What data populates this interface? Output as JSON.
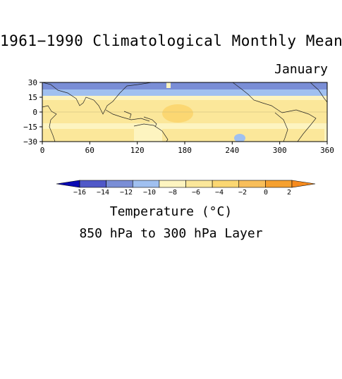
{
  "title": "1961−1990 Climatological Monthly Mean",
  "month": "January",
  "map": {
    "lon_ticks": [
      "0",
      "60",
      "120",
      "180",
      "240",
      "300",
      "360"
    ],
    "lat_ticks": [
      "30",
      "15",
      "0",
      "−15",
      "−30"
    ],
    "lon_range": [
      0,
      360
    ],
    "lat_range": [
      -30,
      30
    ]
  },
  "colorbar": {
    "labels": [
      "−16",
      "−14",
      "−12",
      "−10",
      "−8",
      "−6",
      "−4",
      "−2",
      "0",
      "2"
    ],
    "colors": [
      "#0a0ab4",
      "#5058c8",
      "#7a8ed6",
      "#a0c0f0",
      "#fdf4c0",
      "#fbe79a",
      "#fbd772",
      "#f8be5a",
      "#f5a030",
      "#f58a1e"
    ],
    "title": "Temperature (°C)"
  },
  "layer_label": "850 hPa to 300 hPa Layer"
}
